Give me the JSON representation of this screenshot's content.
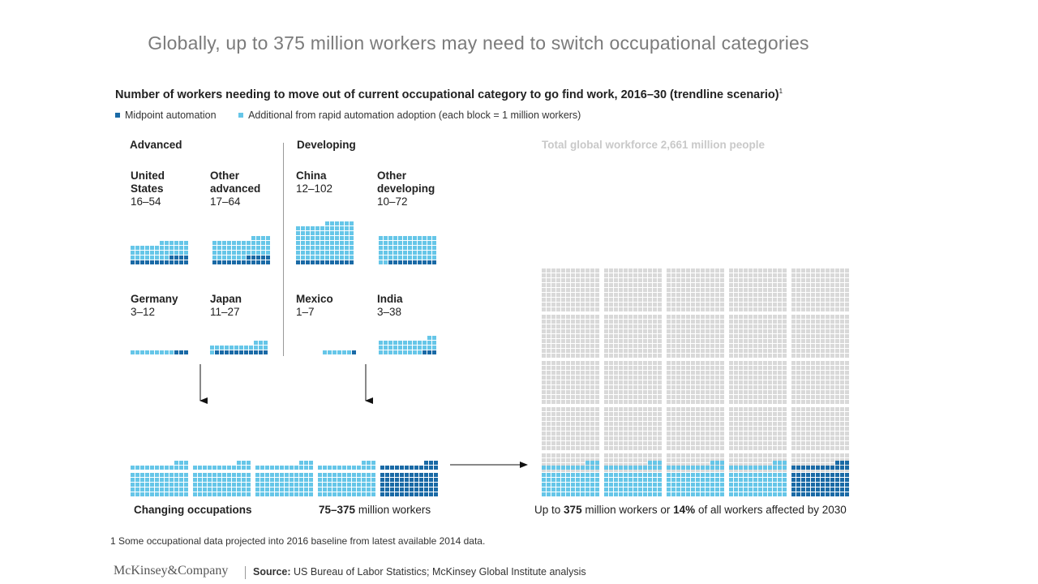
{
  "title": "Globally, up to 375 million workers may need to switch occupational categories",
  "subtitle": "Number of workers needing to move out of current occupational category to go find work, 2016–30 (trendline scenario)",
  "subtitle_note": "1",
  "legend": {
    "midpoint": "Midpoint automation",
    "additional": "Additional from rapid automation adoption (each block = 1 million workers)"
  },
  "groups": {
    "advanced": "Advanced",
    "developing": "Developing"
  },
  "regions": {
    "us": {
      "name": "United States",
      "range": "16–54"
    },
    "other_advanced": {
      "name": "Other advanced",
      "range": "17–64"
    },
    "germany": {
      "name": "Germany",
      "range": "3–12"
    },
    "japan": {
      "name": "Japan",
      "range": "11–27"
    },
    "china": {
      "name": "China",
      "range": "12–102"
    },
    "other_developing": {
      "name": "Other developing",
      "range": "10–72"
    },
    "mexico": {
      "name": "Mexico",
      "range": "1–7"
    },
    "india": {
      "name": "India",
      "range": "3–38"
    }
  },
  "global_title": "Total global workforce 2,661 million people",
  "caption_changing": "Changing occupations",
  "caption_range_value": "75–375",
  "caption_range_unit": "million workers",
  "caption_global": {
    "prefix": "Up to",
    "value": "375",
    "mid": "million workers or",
    "pct": "14%",
    "suffix": "of all workers affected by 2030"
  },
  "footnote": "1 Some occupational data projected into 2016 baseline from latest available 2014 data.",
  "brand": "McKinsey&Company",
  "source_label": "Source:",
  "source_text": "US Bureau of Labor Statistics; McKinsey Global Institute analysis",
  "colors": {
    "midpoint": "#1a6aa6",
    "additional": "#66c6e8",
    "workforce": "#d9d9d9",
    "text": "#222222"
  },
  "chart_data": {
    "type": "waffle",
    "unit": "1 million workers per block",
    "series": [
      {
        "name": "Midpoint automation",
        "values": [
          16,
          17,
          3,
          11,
          12,
          10,
          1,
          3
        ]
      },
      {
        "name": "Rapid automation adoption (total)",
        "values": [
          54,
          64,
          12,
          27,
          102,
          72,
          7,
          38
        ]
      }
    ],
    "categories": [
      "United States",
      "Other advanced",
      "Germany",
      "Japan",
      "China",
      "Other developing",
      "Mexico",
      "India"
    ],
    "total_changing_occupations": {
      "low": 75,
      "high": 375
    },
    "global_workforce_millions": 2661,
    "share_affected_pct": 14
  }
}
